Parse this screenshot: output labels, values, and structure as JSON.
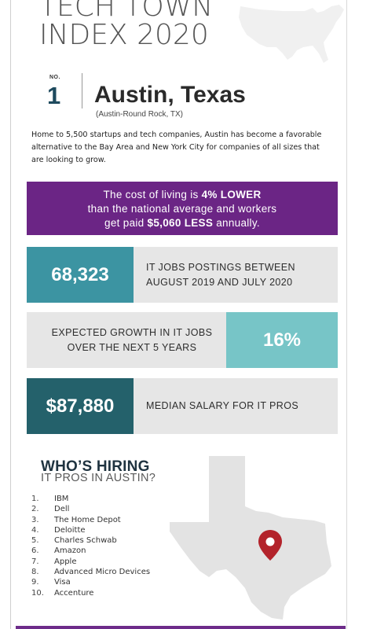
{
  "header": {
    "title_line1": "TECH TOWN",
    "title_line2": "INDEX 2020"
  },
  "rank": {
    "no_label": "NO.",
    "number": "1",
    "city": "Austin, Texas",
    "metro": "(Austin-Round Rock, TX)"
  },
  "intro": "Home to 5,500 startups and tech companies, Austin has become a favorable alternative to the Bay Area and New York City for companies of all sizes that are looking to grow.",
  "cost_box": {
    "part1": "The cost of living is ",
    "bold1": "4% LOWER",
    "part2": "than the national average and workers",
    "part3": "get paid ",
    "bold2": "$5,060 LESS",
    "part4": " annually."
  },
  "stats": {
    "jobs_value": "68,323",
    "jobs_label": "IT JOBS POSTINGS BETWEEN AUGUST 2019 AND JULY 2020",
    "growth_label": "EXPECTED GROWTH IN IT JOBS OVER THE NEXT 5 YEARS",
    "growth_value": "16%",
    "salary_value": "$87,880",
    "salary_label": "MEDIAN SALARY FOR IT PROS"
  },
  "hiring": {
    "title": "WHO’S HIRING",
    "subtitle": "IT PROS IN AUSTIN?",
    "companies": [
      {
        "n": "1.",
        "name": "IBM"
      },
      {
        "n": "2.",
        "name": "Dell"
      },
      {
        "n": "3.",
        "name": "The Home Depot"
      },
      {
        "n": "4.",
        "name": "Deloitte"
      },
      {
        "n": "5.",
        "name": "Charles Schwab"
      },
      {
        "n": "6.",
        "name": "Amazon"
      },
      {
        "n": "7.",
        "name": "Apple"
      },
      {
        "n": "8.",
        "name": "Advanced Micro Devices"
      },
      {
        "n": "9.",
        "name": "Visa"
      },
      {
        "n": "10.",
        "name": "Accenture"
      }
    ]
  },
  "colors": {
    "purple": "#6b2585",
    "teal": "#3c94a2",
    "light_teal": "#77c5c7",
    "dark_teal": "#24616b",
    "pin_red": "#b3232b"
  },
  "icons": [
    "us-map-icon",
    "texas-map-icon",
    "location-pin-icon"
  ]
}
